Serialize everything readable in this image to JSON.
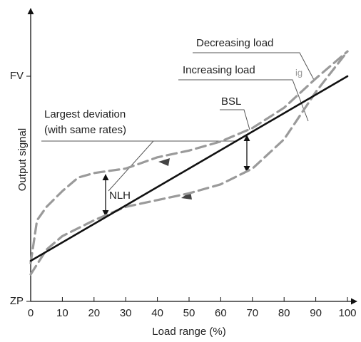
{
  "chart_data": {
    "type": "line",
    "xlabel": "Load range (%)",
    "ylabel": "Output signal",
    "xlim": [
      0,
      100
    ],
    "ylim": [
      0,
      130
    ],
    "xticks": [
      0,
      10,
      20,
      30,
      40,
      50,
      60,
      70,
      80,
      90,
      100
    ],
    "yticks": [
      {
        "value": 0,
        "label": "ZP"
      },
      {
        "value": 100,
        "label": "FV"
      }
    ],
    "series": [
      {
        "name": "Decreasing load",
        "color": "#9a9a9a",
        "dashed": true,
        "x": [
          0,
          2,
          5,
          10,
          15,
          20,
          25,
          30,
          40,
          50,
          60,
          70,
          80,
          90,
          100
        ],
        "values": [
          17,
          36,
          42,
          49,
          55,
          57,
          58,
          59,
          64,
          67,
          71,
          77,
          86,
          99,
          111
        ]
      },
      {
        "name": "Increasing load",
        "color": "#9a9a9a",
        "dashed": true,
        "x": [
          0,
          5,
          10,
          20,
          30,
          40,
          50,
          60,
          70,
          80,
          90,
          100
        ],
        "values": [
          12,
          23,
          29,
          36,
          42,
          45,
          48,
          52,
          59,
          72,
          93,
          111
        ]
      },
      {
        "name": "BSL",
        "color": "#111111",
        "dashed": false,
        "x": [
          0,
          100
        ],
        "values": [
          18,
          100
        ]
      }
    ],
    "annotations": [
      "Largest deviation",
      "(with same rates)",
      "NLH",
      "ig"
    ]
  }
}
